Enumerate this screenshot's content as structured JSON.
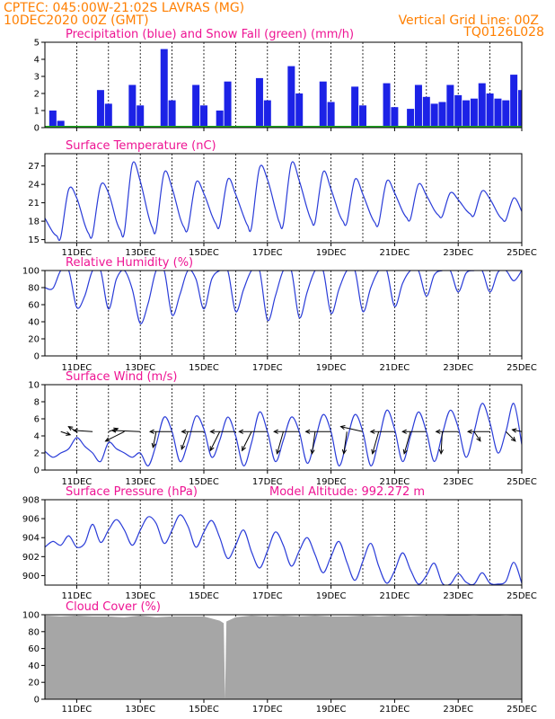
{
  "header": {
    "line1": "CPTEC:   045:00W-21:02S   LAVRAS  (MG)",
    "line2": "10DEC2020  00Z  (GMT)",
    "grid_note": "Vertical Grid Line: 00Z",
    "code": "TQ0126L028"
  },
  "colors": {
    "header": "#ff7f00",
    "titles": "#ee1493",
    "precip": "#1c22e6",
    "snow": "#22aa22",
    "line": "#2a3cd8",
    "cloud": "#a6a6a6"
  },
  "time_axis": {
    "start": "10DEC2020 00Z",
    "end": "25DEC2020 00Z",
    "tick_labels": [
      "11DEC",
      "13DEC",
      "15DEC",
      "17DEC",
      "19DEC",
      "21DEC",
      "23DEC",
      "25DEC"
    ]
  },
  "chart_data": [
    {
      "id": "precip",
      "type": "bar",
      "title": "Precipitation (blue) and Snow Fall (green) (mm/h)",
      "ylim": [
        0,
        5
      ],
      "yticks": [
        0,
        1,
        2,
        3,
        4,
        5
      ],
      "series": [
        {
          "name": "Precipitation",
          "color": "#1c22e6",
          "x": [
            "10DEC 06Z",
            "10DEC 12Z",
            "11DEC 18Z",
            "12DEC 00Z",
            "12DEC 18Z",
            "13DEC 00Z",
            "13DEC 18Z",
            "14DEC 00Z",
            "14DEC 18Z",
            "15DEC 00Z",
            "15DEC 12Z",
            "15DEC 18Z",
            "16DEC 18Z",
            "17DEC 00Z",
            "17DEC 18Z",
            "18DEC 00Z",
            "18DEC 18Z",
            "19DEC 00Z",
            "19DEC 18Z",
            "20DEC 00Z",
            "20DEC 18Z",
            "21DEC 00Z",
            "21DEC 12Z",
            "21DEC 18Z",
            "22DEC 00Z",
            "22DEC 06Z",
            "22DEC 12Z",
            "22DEC 18Z",
            "23DEC 00Z",
            "23DEC 06Z",
            "23DEC 12Z",
            "23DEC 18Z",
            "24DEC 00Z",
            "24DEC 06Z",
            "24DEC 12Z",
            "24DEC 18Z",
            "25DEC 00Z"
          ],
          "values": [
            1.0,
            0.4,
            2.2,
            1.4,
            2.5,
            1.3,
            4.6,
            1.6,
            2.5,
            1.3,
            1.0,
            2.7,
            2.9,
            1.6,
            3.6,
            2.0,
            2.7,
            1.5,
            2.4,
            1.3,
            2.6,
            1.2,
            1.1,
            2.5,
            1.8,
            1.4,
            1.5,
            2.5,
            1.9,
            1.6,
            1.7,
            2.6,
            2.0,
            1.7,
            1.6,
            3.1,
            2.2
          ]
        }
      ],
      "snow": [
        0
      ]
    },
    {
      "id": "temperature",
      "type": "line",
      "title": "Surface Temperature (nC)",
      "ylim": [
        14.5,
        29
      ],
      "yticks": [
        15,
        18,
        21,
        24,
        27
      ],
      "series": [
        {
          "name": "Surface Temperature",
          "x": [
            "10DEC 00Z",
            "10DEC 06Z",
            "10DEC 09Z",
            "10DEC 12Z",
            "10DEC 18Z",
            "11DEC 00Z",
            "11DEC 06Z",
            "11DEC 09Z",
            "11DEC 12Z",
            "11DEC 18Z",
            "12DEC 00Z",
            "12DEC 06Z",
            "12DEC 09Z",
            "12DEC 12Z",
            "12DEC 18Z",
            "13DEC 00Z",
            "13DEC 06Z",
            "13DEC 09Z",
            "13DEC 12Z",
            "13DEC 18Z",
            "14DEC 00Z",
            "14DEC 06Z",
            "14DEC 09Z",
            "14DEC 12Z",
            "14DEC 18Z",
            "15DEC 00Z",
            "15DEC 06Z",
            "15DEC 09Z",
            "15DEC 12Z",
            "15DEC 18Z",
            "16DEC 00Z",
            "16DEC 06Z",
            "16DEC 09Z",
            "16DEC 12Z",
            "16DEC 18Z",
            "17DEC 00Z",
            "17DEC 06Z",
            "17DEC 09Z",
            "17DEC 12Z",
            "17DEC 18Z",
            "18DEC 00Z",
            "18DEC 06Z",
            "18DEC 09Z",
            "18DEC 12Z",
            "18DEC 18Z",
            "19DEC 00Z",
            "19DEC 06Z",
            "19DEC 09Z",
            "19DEC 12Z",
            "19DEC 18Z",
            "20DEC 00Z",
            "20DEC 06Z",
            "20DEC 09Z",
            "20DEC 12Z",
            "20DEC 18Z",
            "21DEC 00Z",
            "21DEC 06Z",
            "21DEC 09Z",
            "21DEC 12Z",
            "21DEC 18Z",
            "22DEC 00Z",
            "22DEC 06Z",
            "22DEC 09Z",
            "22DEC 12Z",
            "22DEC 18Z",
            "23DEC 00Z",
            "23DEC 06Z",
            "23DEC 09Z",
            "23DEC 12Z",
            "23DEC 18Z",
            "24DEC 00Z",
            "24DEC 06Z",
            "24DEC 09Z",
            "24DEC 12Z",
            "24DEC 18Z",
            "25DEC 00Z"
          ],
          "values": [
            18.5,
            16.2,
            15.6,
            15.4,
            23.2,
            21.8,
            17.5,
            16.0,
            15.8,
            23.8,
            22.6,
            18.0,
            16.5,
            16.2,
            27.3,
            24.5,
            19.0,
            17.0,
            16.6,
            25.9,
            23.4,
            18.6,
            17.0,
            16.8,
            24.3,
            22.5,
            19.0,
            17.6,
            17.3,
            24.8,
            22.4,
            18.8,
            17.3,
            17.0,
            26.7,
            24.8,
            20.0,
            17.8,
            17.5,
            27.4,
            24.6,
            20.0,
            18.2,
            17.9,
            26.0,
            23.2,
            19.3,
            18.0,
            17.8,
            24.8,
            22.4,
            19.0,
            17.8,
            17.6,
            24.5,
            22.6,
            19.6,
            18.6,
            18.4,
            24.0,
            22.2,
            19.8,
            19.0,
            18.8,
            22.6,
            21.5,
            19.8,
            19.2,
            19.0,
            22.9,
            21.6,
            19.2,
            18.4,
            18.2,
            21.8,
            19.6
          ]
        }
      ]
    },
    {
      "id": "humidity",
      "type": "line",
      "title": "Relative Humidity (%)",
      "ylim": [
        0,
        100
      ],
      "yticks": [
        0,
        20,
        40,
        60,
        80,
        100
      ],
      "series": [
        {
          "name": "Relative Humidity",
          "x": [
            "10DEC 00Z",
            "10DEC 06Z",
            "10DEC 12Z",
            "10DEC 18Z",
            "11DEC 00Z",
            "11DEC 06Z",
            "11DEC 12Z",
            "11DEC 18Z",
            "12DEC 00Z",
            "12DEC 06Z",
            "12DEC 12Z",
            "12DEC 18Z",
            "13DEC 00Z",
            "13DEC 06Z",
            "13DEC 12Z",
            "13DEC 18Z",
            "14DEC 00Z",
            "14DEC 06Z",
            "14DEC 12Z",
            "14DEC 18Z",
            "15DEC 00Z",
            "15DEC 06Z",
            "15DEC 12Z",
            "15DEC 18Z",
            "16DEC 00Z",
            "16DEC 06Z",
            "16DEC 12Z",
            "16DEC 18Z",
            "17DEC 00Z",
            "17DEC 06Z",
            "17DEC 12Z",
            "17DEC 18Z",
            "18DEC 00Z",
            "18DEC 06Z",
            "18DEC 12Z",
            "18DEC 18Z",
            "19DEC 00Z",
            "19DEC 06Z",
            "19DEC 12Z",
            "19DEC 18Z",
            "20DEC 00Z",
            "20DEC 06Z",
            "20DEC 12Z",
            "20DEC 18Z",
            "21DEC 00Z",
            "21DEC 06Z",
            "21DEC 12Z",
            "21DEC 18Z",
            "22DEC 00Z",
            "22DEC 06Z",
            "22DEC 12Z",
            "22DEC 18Z",
            "23DEC 00Z",
            "23DEC 06Z",
            "23DEC 12Z",
            "23DEC 18Z",
            "24DEC 00Z",
            "24DEC 06Z",
            "24DEC 12Z",
            "24DEC 18Z",
            "25DEC 00Z"
          ],
          "values": [
            80,
            79,
            100,
            100,
            57,
            70,
            100,
            100,
            55,
            90,
            100,
            78,
            38,
            62,
            100,
            100,
            48,
            72,
            100,
            90,
            55,
            90,
            100,
            100,
            52,
            78,
            100,
            100,
            42,
            70,
            100,
            100,
            45,
            75,
            100,
            100,
            50,
            78,
            100,
            100,
            52,
            80,
            100,
            100,
            58,
            85,
            100,
            100,
            70,
            95,
            100,
            100,
            75,
            97,
            100,
            100,
            75,
            98,
            100,
            88,
            100
          ]
        }
      ]
    },
    {
      "id": "wind",
      "type": "line",
      "title": "Surface Wind (m/s)",
      "ylim": [
        0,
        10
      ],
      "yticks": [
        0,
        2,
        4,
        6,
        8,
        10
      ],
      "series": [
        {
          "name": "Surface Wind",
          "x": [
            "10DEC 00Z",
            "10DEC 06Z",
            "10DEC 12Z",
            "10DEC 18Z",
            "11DEC 00Z",
            "11DEC 06Z",
            "11DEC 12Z",
            "11DEC 18Z",
            "12DEC 00Z",
            "12DEC 06Z",
            "12DEC 12Z",
            "12DEC 18Z",
            "13DEC 00Z",
            "13DEC 06Z",
            "13DEC 12Z",
            "13DEC 18Z",
            "14DEC 00Z",
            "14DEC 06Z",
            "14DEC 12Z",
            "14DEC 18Z",
            "15DEC 00Z",
            "15DEC 06Z",
            "15DEC 12Z",
            "15DEC 18Z",
            "16DEC 00Z",
            "16DEC 06Z",
            "16DEC 12Z",
            "16DEC 18Z",
            "17DEC 00Z",
            "17DEC 06Z",
            "17DEC 12Z",
            "17DEC 18Z",
            "18DEC 00Z",
            "18DEC 06Z",
            "18DEC 12Z",
            "18DEC 18Z",
            "19DEC 00Z",
            "19DEC 06Z",
            "19DEC 12Z",
            "19DEC 18Z",
            "20DEC 00Z",
            "20DEC 06Z",
            "20DEC 12Z",
            "20DEC 18Z",
            "21DEC 00Z",
            "21DEC 06Z",
            "21DEC 12Z",
            "21DEC 18Z",
            "22DEC 00Z",
            "22DEC 06Z",
            "22DEC 12Z",
            "22DEC 18Z",
            "23DEC 00Z",
            "23DEC 06Z",
            "23DEC 12Z",
            "23DEC 18Z",
            "24DEC 00Z",
            "24DEC 06Z",
            "24DEC 12Z",
            "24DEC 18Z",
            "25DEC 00Z"
          ],
          "values": [
            2.2,
            1.5,
            2.0,
            2.5,
            3.8,
            2.8,
            2.0,
            1.0,
            3.2,
            2.5,
            2.0,
            1.5,
            2.0,
            0.5,
            3.0,
            6.2,
            4.5,
            1.0,
            3.2,
            6.3,
            4.8,
            1.5,
            3.5,
            6.2,
            4.0,
            0.5,
            3.2,
            6.8,
            4.5,
            1.0,
            3.5,
            6.2,
            4.5,
            0.8,
            3.5,
            6.5,
            4.5,
            0.5,
            3.5,
            6.5,
            4.5,
            0.5,
            3.5,
            7.0,
            4.8,
            1.0,
            4.0,
            6.8,
            4.5,
            1.0,
            4.2,
            7.0,
            5.0,
            1.5,
            4.5,
            7.8,
            5.5,
            2.0,
            4.5,
            7.8,
            3.0
          ]
        }
      ],
      "vectors": {
        "x": [
          "10DEC 12Z",
          "11DEC 00Z",
          "11DEC 12Z",
          "12DEC 00Z",
          "12DEC 12Z",
          "13DEC 00Z",
          "13DEC 12Z",
          "14DEC 00Z",
          "14DEC 12Z",
          "15DEC 00Z",
          "15DEC 12Z",
          "16DEC 00Z",
          "16DEC 12Z",
          "17DEC 00Z",
          "17DEC 12Z",
          "18DEC 00Z",
          "18DEC 12Z",
          "19DEC 00Z",
          "19DEC 12Z",
          "20DEC 00Z",
          "20DEC 12Z",
          "21DEC 00Z",
          "21DEC 12Z",
          "22DEC 00Z",
          "22DEC 12Z",
          "23DEC 00Z",
          "23DEC 12Z",
          "24DEC 00Z",
          "24DEC 12Z",
          "25DEC 00Z"
        ],
        "u": [
          1.5,
          -1.3,
          -3.0,
          1.5,
          -3.0,
          -4.5,
          -0.5,
          -3.5,
          -1.0,
          -3.5,
          -1.5,
          -4.0,
          -1.5,
          -4.5,
          -1.0,
          -4.0,
          -0.5,
          -4.0,
          -0.5,
          -3.5,
          -1.0,
          -3.8,
          -1.0,
          -3.8,
          -0.2,
          -3.5,
          1.0,
          -3.5,
          1.5,
          -1.5
        ],
        "v": [
          -0.5,
          0.8,
          0.2,
          0.5,
          -1.5,
          0.2,
          -2.5,
          0.0,
          -2.8,
          0.0,
          -3.0,
          0.0,
          -3.0,
          0.0,
          -3.5,
          0.0,
          -3.5,
          0.0,
          -3.5,
          0.8,
          -3.5,
          0.0,
          -3.5,
          0.0,
          -3.5,
          0.0,
          -1.5,
          0.0,
          -1.5,
          0.3
        ]
      }
    },
    {
      "id": "pressure",
      "type": "line",
      "title": "Surface Pressure (hPa)",
      "ylim": [
        899,
        908
      ],
      "yticks": [
        900,
        902,
        904,
        906,
        908
      ],
      "series": [
        {
          "name": "Surface Pressure",
          "x": [
            "10DEC 00Z",
            "10DEC 06Z",
            "10DEC 12Z",
            "10DEC 18Z",
            "11DEC 00Z",
            "11DEC 06Z",
            "11DEC 12Z",
            "11DEC 18Z",
            "12DEC 00Z",
            "12DEC 06Z",
            "12DEC 12Z",
            "12DEC 18Z",
            "13DEC 00Z",
            "13DEC 06Z",
            "13DEC 12Z",
            "13DEC 18Z",
            "14DEC 00Z",
            "14DEC 06Z",
            "14DEC 12Z",
            "14DEC 18Z",
            "15DEC 00Z",
            "15DEC 06Z",
            "15DEC 12Z",
            "15DEC 18Z",
            "16DEC 00Z",
            "16DEC 06Z",
            "16DEC 12Z",
            "16DEC 18Z",
            "17DEC 00Z",
            "17DEC 06Z",
            "17DEC 12Z",
            "17DEC 18Z",
            "18DEC 00Z",
            "18DEC 06Z",
            "18DEC 12Z",
            "18DEC 18Z",
            "19DEC 00Z",
            "19DEC 06Z",
            "19DEC 12Z",
            "19DEC 18Z",
            "20DEC 00Z",
            "20DEC 06Z",
            "20DEC 12Z",
            "20DEC 18Z",
            "21DEC 00Z",
            "21DEC 06Z",
            "21DEC 12Z",
            "21DEC 18Z",
            "22DEC 00Z",
            "22DEC 06Z",
            "22DEC 12Z",
            "22DEC 18Z",
            "23DEC 00Z",
            "23DEC 06Z",
            "23DEC 12Z",
            "23DEC 18Z",
            "24DEC 00Z",
            "24DEC 06Z",
            "24DEC 12Z",
            "24DEC 18Z",
            "25DEC 00Z"
          ],
          "values": [
            903.0,
            903.6,
            903.2,
            904.2,
            903.0,
            903.4,
            905.4,
            903.5,
            904.8,
            905.9,
            904.8,
            903.2,
            904.8,
            906.2,
            905.5,
            903.4,
            904.8,
            906.4,
            905.2,
            903.0,
            904.6,
            905.8,
            904.0,
            901.8,
            903.2,
            904.8,
            902.5,
            900.8,
            902.6,
            904.6,
            903.2,
            901.0,
            902.6,
            904.0,
            902.2,
            900.3,
            902.0,
            903.6,
            901.4,
            899.5,
            901.5,
            903.4,
            901.0,
            899.2,
            900.5,
            902.4,
            900.6,
            899.1,
            900.0,
            901.3,
            899.2,
            899.1,
            900.2,
            899.3,
            899.1,
            900.3,
            899.2,
            899.1,
            899.4,
            901.4,
            899.2
          ]
        }
      ],
      "annotation": "Model Altitude: 992.272 m"
    },
    {
      "id": "cloud",
      "type": "area",
      "title": "Cloud Cover (%)",
      "ylim": [
        0,
        100
      ],
      "yticks": [
        0,
        20,
        40,
        60,
        80,
        100
      ],
      "series": [
        {
          "name": "Cloud Cover",
          "color": "#a6a6a6",
          "x": [
            "10DEC 00Z",
            "10DEC 12Z",
            "11DEC 00Z",
            "11DEC 12Z",
            "12DEC 00Z",
            "12DEC 12Z",
            "13DEC 00Z",
            "13DEC 12Z",
            "14DEC 00Z",
            "14DEC 12Z",
            "15DEC 00Z",
            "15DEC 12Z",
            "15DEC 15Z",
            "15DEC 16Z",
            "15DEC 17Z",
            "16DEC 00Z",
            "16DEC 12Z",
            "17DEC 00Z",
            "17DEC 12Z",
            "18DEC 00Z",
            "18DEC 12Z",
            "19DEC 00Z",
            "19DEC 12Z",
            "20DEC 00Z",
            "20DEC 12Z",
            "21DEC 00Z",
            "21DEC 12Z",
            "22DEC 00Z",
            "22DEC 12Z",
            "23DEC 00Z",
            "23DEC 12Z",
            "24DEC 00Z",
            "24DEC 12Z",
            "25DEC 00Z"
          ],
          "values": [
            99,
            98,
            99,
            98,
            98,
            97,
            99,
            97,
            98,
            98,
            98,
            93,
            90,
            0,
            92,
            97,
            99,
            98,
            99,
            98,
            99,
            98,
            98,
            99,
            98,
            99,
            98,
            99,
            99,
            100,
            99,
            100,
            99,
            100
          ]
        }
      ]
    }
  ]
}
